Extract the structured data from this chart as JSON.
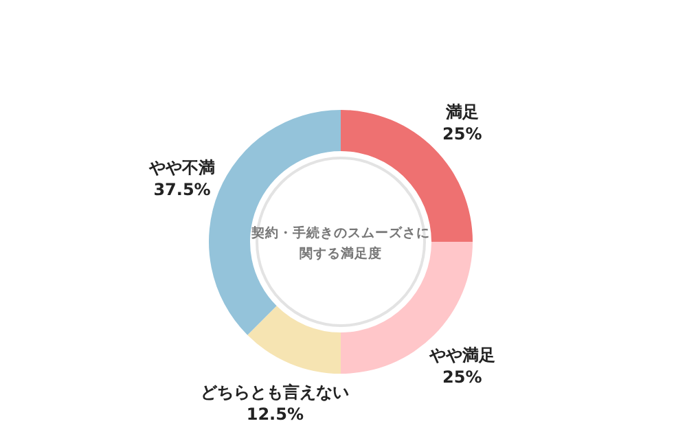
{
  "chart_data": {
    "type": "donut",
    "title": "契約・手続きのスムーズさに関する満足度",
    "categories": [
      "満足",
      "やや満足",
      "どちらとも言えない",
      "やや不満"
    ],
    "values": [
      25,
      25,
      12.5,
      37.5
    ],
    "colors": [
      "#ee7171",
      "#ffc6c9",
      "#f6e4b2",
      "#94c3da"
    ],
    "value_labels": [
      "25%",
      "25%",
      "12.5%",
      "37.5%"
    ]
  }
}
